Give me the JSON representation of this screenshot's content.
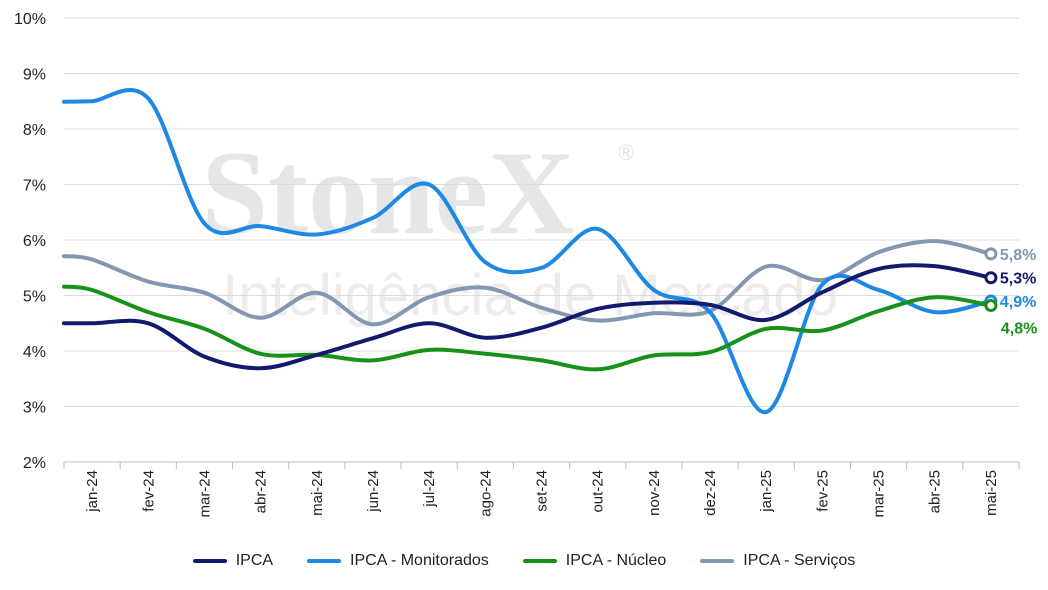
{
  "watermark": {
    "brand": "StoneX",
    "registered": "®",
    "tagline": "Inteligência de Mercado"
  },
  "chart_data": {
    "type": "line",
    "categories": [
      "jan-24",
      "fev-24",
      "mar-24",
      "abr-24",
      "mai-24",
      "jun-24",
      "jul-24",
      "ago-24",
      "set-24",
      "out-24",
      "nov-24",
      "dez-24",
      "jan-25",
      "fev-25",
      "mar-25",
      "abr-25",
      "mai-25"
    ],
    "y_ticks": [
      "2%",
      "3%",
      "4%",
      "5%",
      "6%",
      "7%",
      "8%",
      "9%",
      "10%"
    ],
    "ylim": [
      2,
      10
    ],
    "grid": true,
    "legend_position": "bottom",
    "series": [
      {
        "name": "IPCA",
        "color": "#131a6e",
        "end_label": "5,3%",
        "values": [
          4.5,
          4.5,
          3.9,
          3.69,
          3.93,
          4.23,
          4.5,
          4.24,
          4.42,
          4.76,
          4.87,
          4.83,
          4.56,
          5.06,
          5.48,
          5.53,
          5.32
        ]
      },
      {
        "name": "IPCA - Monitorados",
        "color": "#1e88e5",
        "end_label": "4,9%",
        "values": [
          8.5,
          8.55,
          6.3,
          6.25,
          6.1,
          6.4,
          7.0,
          5.6,
          5.5,
          6.2,
          5.1,
          4.7,
          2.9,
          5.2,
          5.1,
          4.7,
          4.9
        ]
      },
      {
        "name": "IPCA - Núcleo",
        "color": "#189118",
        "end_label": "4,8%",
        "values": [
          5.1,
          4.7,
          4.4,
          3.95,
          3.93,
          3.83,
          4.02,
          3.95,
          3.83,
          3.67,
          3.92,
          3.98,
          4.4,
          4.37,
          4.72,
          4.97,
          4.82
        ]
      },
      {
        "name": "IPCA - Serviços",
        "color": "#8497b0",
        "end_label": "5,8%",
        "values": [
          5.65,
          5.25,
          5.05,
          4.6,
          5.05,
          4.48,
          4.97,
          5.14,
          4.78,
          4.55,
          4.68,
          4.72,
          5.52,
          5.28,
          5.78,
          5.98,
          5.75
        ]
      }
    ]
  }
}
